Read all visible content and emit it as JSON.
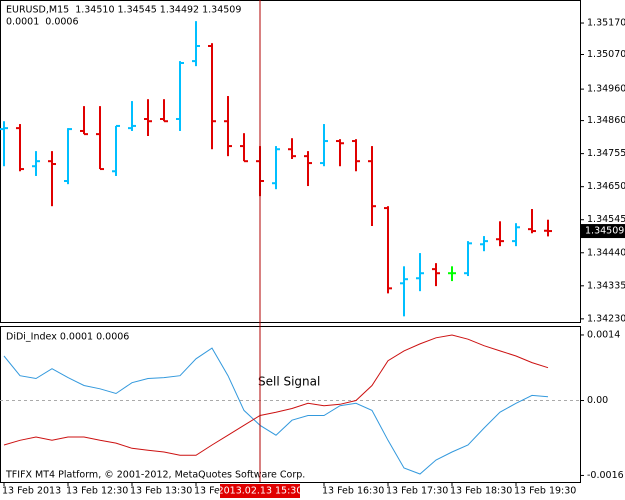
{
  "chart_data": [
    {
      "type": "ohlc",
      "title": "EURUSD,M15  1.34510 1.34545 1.34492 1.34509",
      "subtitle": "0.0001  0.0006",
      "open": [
        1.34833,
        1.34836,
        1.34715,
        1.34731,
        1.34668,
        1.34827,
        1.34817,
        1.34699,
        1.34836,
        1.34865,
        1.34865,
        1.34865,
        1.35049,
        1.35097,
        1.34858,
        1.34779,
        1.34731,
        1.34661,
        1.34769,
        1.34747,
        1.34725,
        1.34795,
        1.34795,
        1.34731,
        1.34582,
        1.34343,
        1.34359,
        1.34388,
        1.34375,
        1.34375,
        1.34467,
        1.34483,
        1.34477,
        1.34515,
        1.3451
      ],
      "high": [
        1.34858,
        1.34849,
        1.34763,
        1.34763,
        1.34836,
        1.34906,
        1.34906,
        1.34843,
        1.34922,
        1.34928,
        1.34928,
        1.35049,
        1.35176,
        1.35106,
        1.34938,
        1.3482,
        1.34779,
        1.34779,
        1.34804,
        1.34763,
        1.34849,
        1.34801,
        1.34801,
        1.34779,
        1.34588,
        1.34397,
        1.34439,
        1.34407,
        1.34397,
        1.34477,
        1.34493,
        1.3454,
        1.34534,
        1.34579,
        1.34545
      ],
      "low": [
        1.34715,
        1.34699,
        1.34684,
        1.34588,
        1.34658,
        1.34817,
        1.34706,
        1.34684,
        1.34827,
        1.34811,
        1.34858,
        1.34827,
        1.35033,
        1.34769,
        1.34747,
        1.34731,
        1.3462,
        1.34642,
        1.34738,
        1.34652,
        1.34715,
        1.34715,
        1.34699,
        1.34525,
        1.34311,
        1.34238,
        1.34318,
        1.34334,
        1.3435,
        1.34366,
        1.34445,
        1.34461,
        1.34461,
        1.34502,
        1.34492
      ],
      "close": [
        1.34836,
        1.34706,
        1.34731,
        1.34722,
        1.34833,
        1.34817,
        1.34706,
        1.34843,
        1.34843,
        1.34858,
        1.34858,
        1.35043,
        1.35097,
        1.34858,
        1.34779,
        1.34731,
        1.34668,
        1.34769,
        1.34747,
        1.34725,
        1.34795,
        1.34788,
        1.34731,
        1.34588,
        1.34327,
        1.34356,
        1.34375,
        1.34375,
        1.34375,
        1.3447,
        1.34477,
        1.34477,
        1.34521,
        1.34509,
        1.34509
      ],
      "up_color": "#00bfff",
      "down_color": "#e00000",
      "doji_color": "#00ff00",
      "xlim": [
        -0.25,
        36
      ],
      "ylim": [
        1.3422,
        1.3524
      ],
      "yticks": [
        {
          "value": 1.3517,
          "label": "1.35170"
        },
        {
          "value": 1.3507,
          "label": "1.35070"
        },
        {
          "value": 1.3496,
          "label": "1.34960"
        },
        {
          "value": 1.3486,
          "label": "1.34860"
        },
        {
          "value": 1.34755,
          "label": "1.34755"
        },
        {
          "value": 1.3465,
          "label": "1.34650"
        },
        {
          "value": 1.34545,
          "label": "1.34545"
        },
        {
          "value": 1.3444,
          "label": "1.34440"
        },
        {
          "value": 1.34335,
          "label": "1.34335"
        },
        {
          "value": 1.3423,
          "label": "1.34230"
        }
      ],
      "price_marker": {
        "value": 1.34509,
        "label": "1.34509"
      }
    },
    {
      "type": "line",
      "title": "DiDi_Index 0.0001 0.0006",
      "annotation": "Sell Signal",
      "footer": "TFIFX MT4 Platform, © 2001-2012, MetaQuotes Software Corp.",
      "series": [
        {
          "color": "#3399dd",
          "values": [
            0.00095,
            0.00053,
            0.00047,
            0.00068,
            0.00049,
            0.00032,
            0.00025,
            0.00015,
            0.00038,
            0.00047,
            0.00049,
            0.00053,
            0.00089,
            0.00112,
            0.00053,
            -0.00021,
            -0.00053,
            -0.00074,
            -0.00042,
            -0.00032,
            -0.00032,
            -0.00011,
            -6e-05,
            -0.00021,
            -0.00085,
            -0.00144,
            -0.00157,
            -0.00127,
            -0.0011,
            -0.00095,
            -0.00059,
            -0.00025,
            -6e-05,
            0.00011,
            8e-05
          ]
        },
        {
          "color": "#cc1111",
          "values": [
            -0.00095,
            -0.00085,
            -0.00078,
            -0.00085,
            -0.00078,
            -0.00078,
            -0.00085,
            -0.00091,
            -0.00102,
            -0.00106,
            -0.0011,
            -0.00117,
            -0.00117,
            -0.00095,
            -0.00074,
            -0.00053,
            -0.00032,
            -0.00025,
            -0.00017,
            -6e-05,
            -0.00011,
            -8e-05,
            0,
            0.00032,
            0.00085,
            0.00106,
            0.00121,
            0.00134,
            0.0014,
            0.00131,
            0.00117,
            0.00106,
            0.00095,
            0.00081,
            0.0007
          ]
        }
      ],
      "xlim": [
        -0.25,
        36
      ],
      "ylim": [
        -0.00174,
        0.00157
      ],
      "yticks": [
        0.0014,
        {
          "value": 0,
          "label": "0.00"
        },
        -0.0016
      ],
      "xticks": [
        {
          "value": 0,
          "label": "13 Feb 2013"
        },
        {
          "value": 4,
          "label": "13 Feb 12:30"
        },
        {
          "value": 8,
          "label": "13 Feb 13:30"
        },
        {
          "value": 12,
          "label": "13 Feb 14:30"
        },
        {
          "value": 20,
          "label": "13 Feb 16:30"
        },
        {
          "value": 24,
          "label": "13 Feb 17:30"
        },
        {
          "value": 28,
          "label": "13 Feb 18:30"
        },
        {
          "value": 32,
          "label": "13 Feb 19:30"
        }
      ],
      "cursor": {
        "value": 16,
        "label": "2013.02.13 15:30"
      }
    }
  ]
}
